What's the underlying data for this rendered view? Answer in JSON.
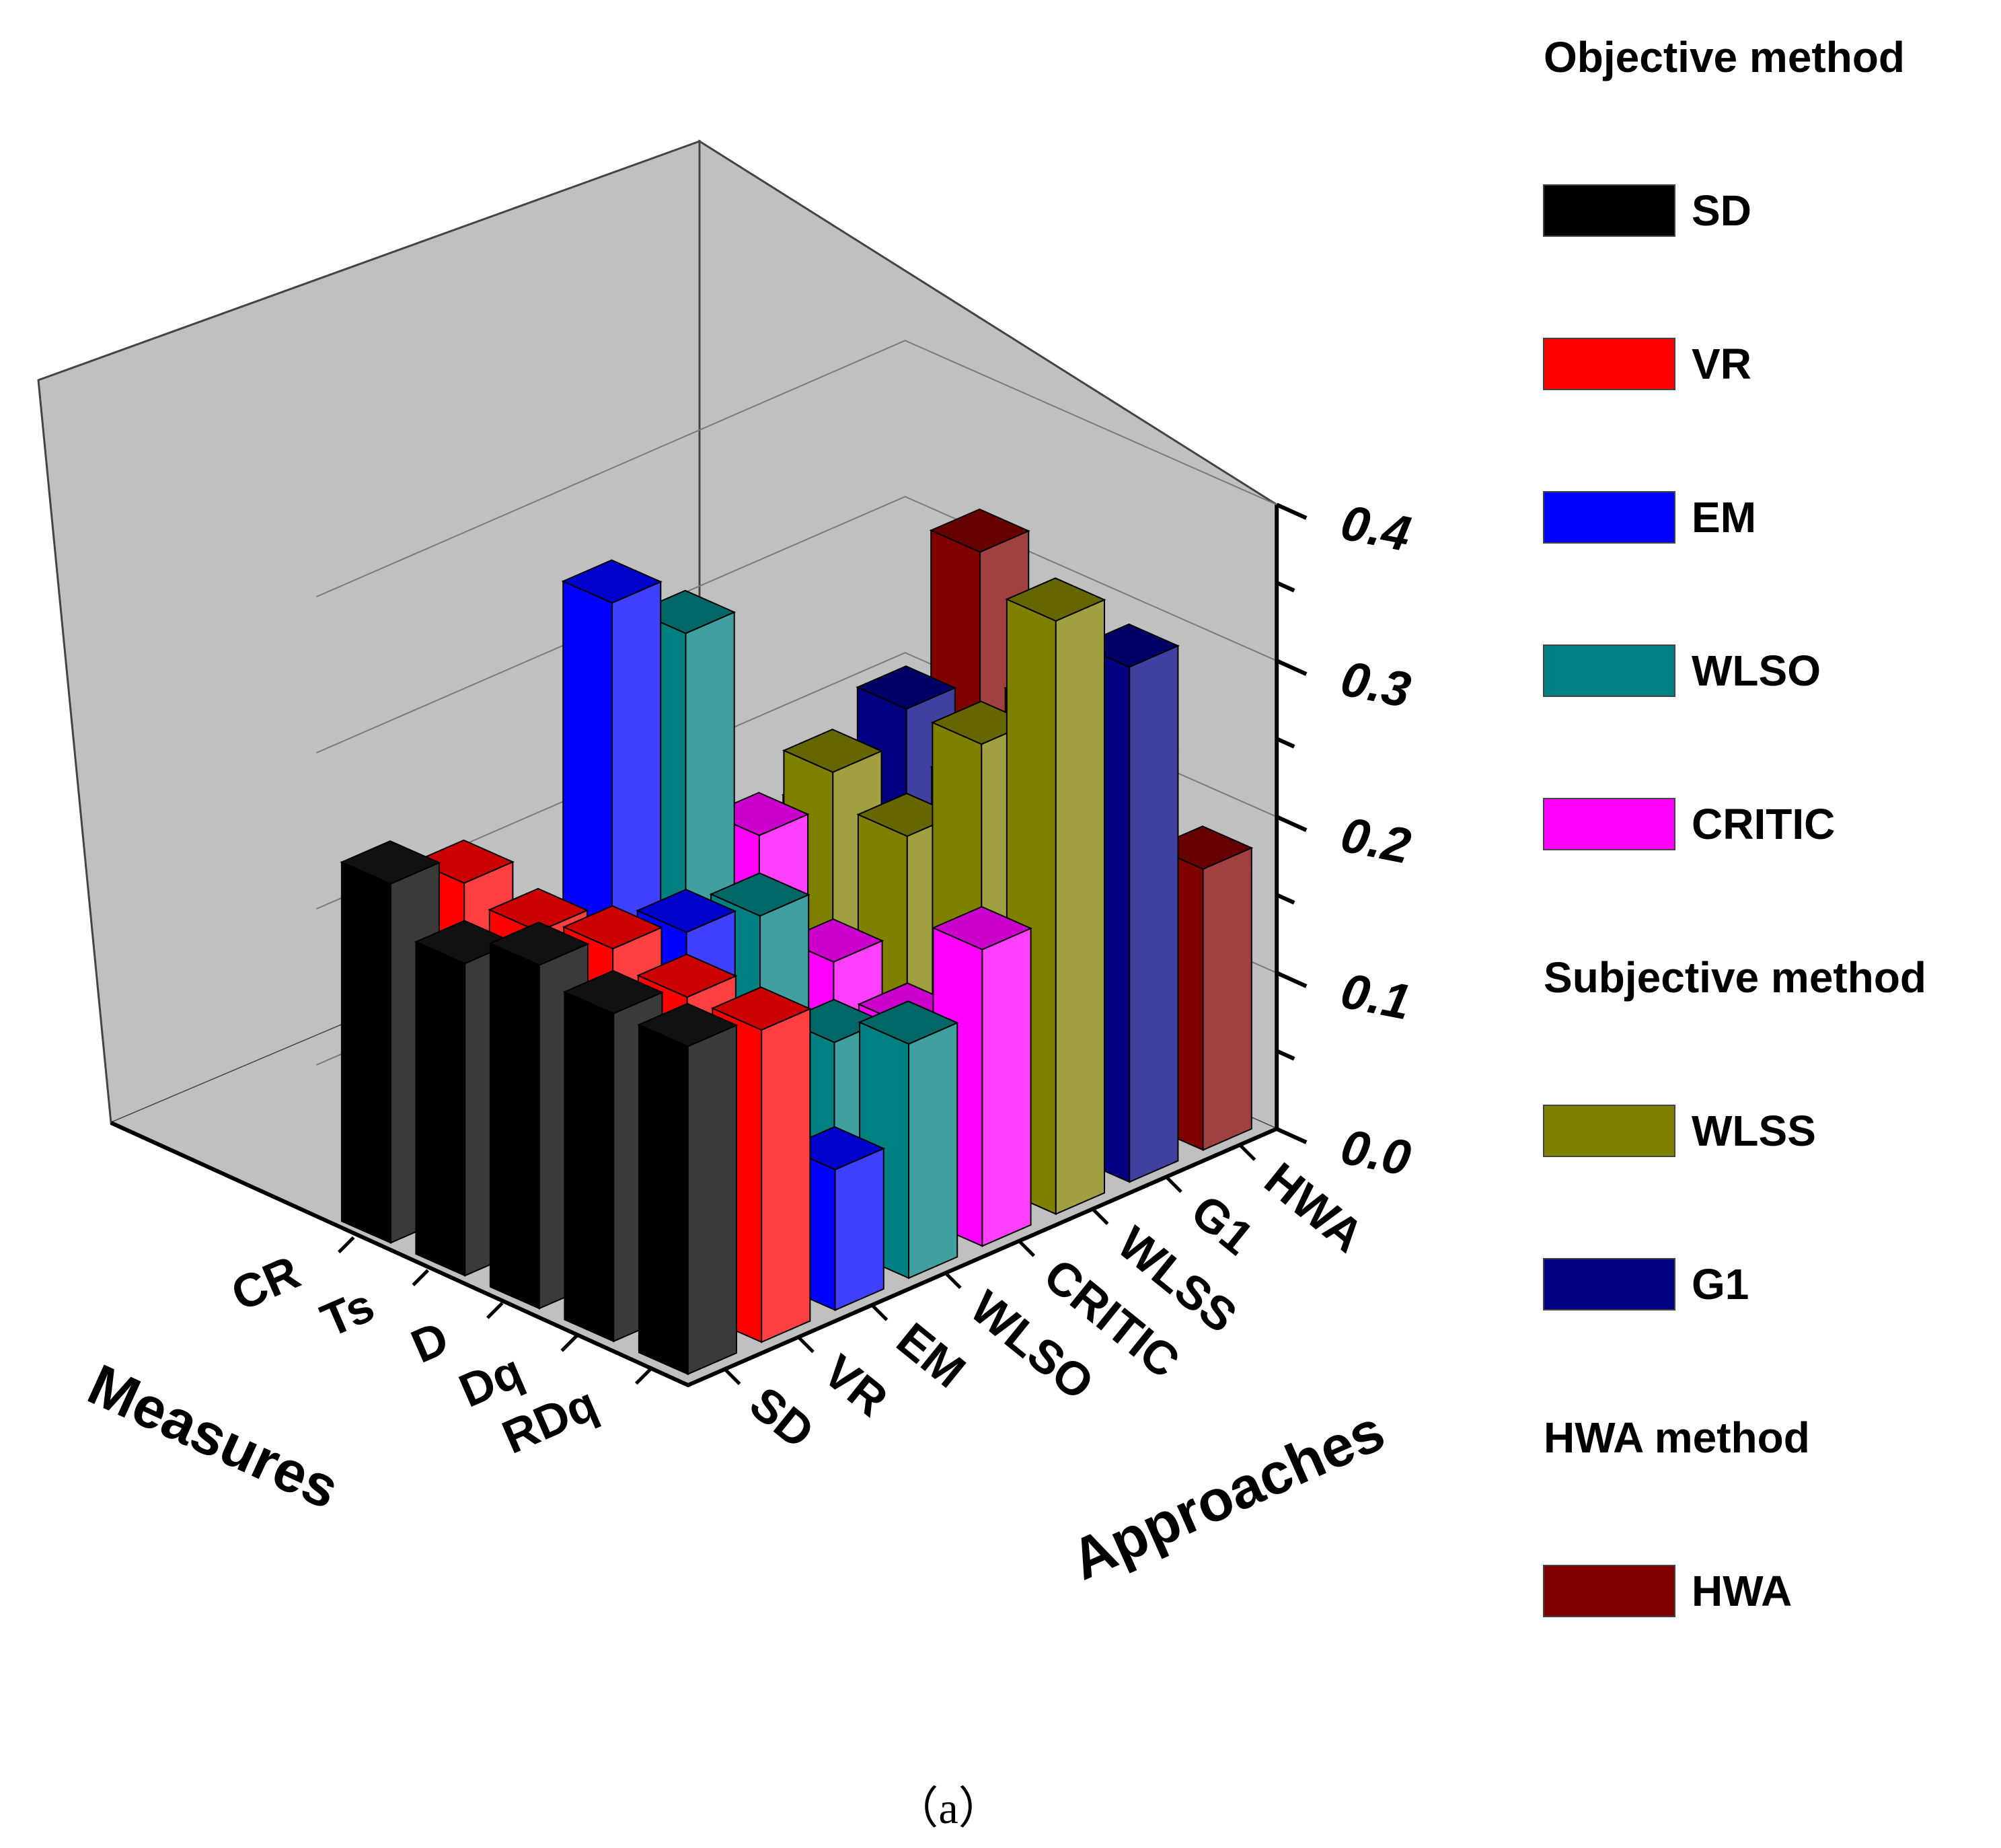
{
  "chart_data": {
    "type": "bar3d",
    "z_axis": {
      "ticks": [
        "0.0",
        "0.1",
        "0.2",
        "0.3",
        "0.4"
      ],
      "range": [
        0,
        0.4
      ]
    },
    "measures": [
      "RDq",
      "Dq",
      "D",
      "Ts",
      "CR"
    ],
    "approaches": [
      "SD",
      "VR",
      "EM",
      "WLSO",
      "CRITIC",
      "WLSS",
      "G1",
      "HWA"
    ],
    "measures_title": "Measures",
    "approaches_title": "Approaches",
    "series": [
      {
        "name": "SD",
        "values": [
          0.21,
          0.21,
          0.22,
          0.2,
          0.23
        ]
      },
      {
        "name": "VR",
        "values": [
          0.2,
          0.2,
          0.21,
          0.2,
          0.21
        ]
      },
      {
        "name": "EM",
        "values": [
          0.09,
          0.12,
          0.2,
          0.39,
          0.11
        ]
      },
      {
        "name": "WLSO",
        "values": [
          0.15,
          0.13,
          0.19,
          0.35,
          0.1
        ]
      },
      {
        "name": "CRITIC",
        "values": [
          0.19,
          0.12,
          0.14,
          0.2,
          0.18
        ]
      },
      {
        "name": "WLSS",
        "values": [
          0.38,
          0.28,
          0.2,
          0.22,
          0.06
        ]
      },
      {
        "name": "G1",
        "values": [
          0.33,
          0.26,
          0.21,
          0.24,
          0.15
        ]
      },
      {
        "name": "HWA",
        "values": [
          0.18,
          0.22,
          0.24,
          0.32,
          0.14
        ]
      }
    ],
    "legend": [
      {
        "heading": "Objective method",
        "items": [
          {
            "label": "SD",
            "color": "#000000"
          },
          {
            "label": "VR",
            "color": "#ff0000"
          },
          {
            "label": "EM",
            "color": "#0000ff"
          },
          {
            "label": "WLSO",
            "color": "#008080"
          },
          {
            "label": "CRITIC",
            "color": "#ff00ff"
          }
        ]
      },
      {
        "heading": "Subjective method",
        "items": [
          {
            "label": "WLSS",
            "color": "#808000"
          },
          {
            "label": "G1",
            "color": "#000080"
          }
        ]
      },
      {
        "heading": "HWA method",
        "items": [
          {
            "label": "HWA",
            "color": "#800000"
          }
        ]
      }
    ],
    "caption": "（a）"
  }
}
